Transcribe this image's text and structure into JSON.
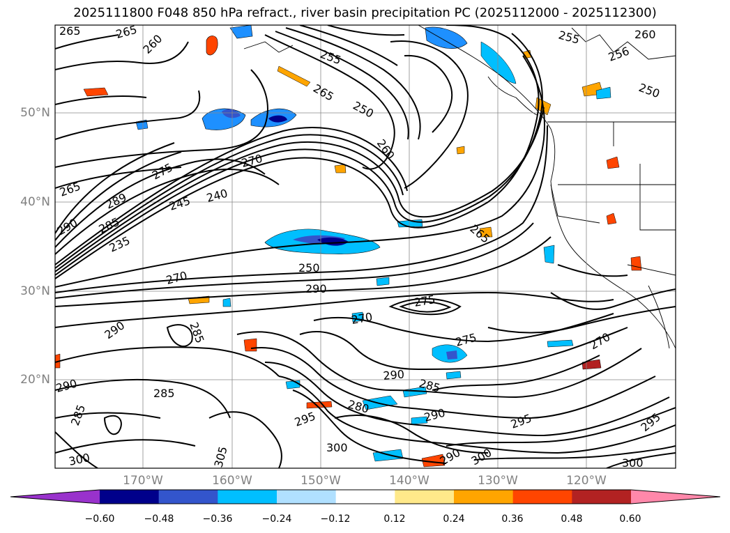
{
  "title": "2025111800 F048 850 hPa refract., river basin precipitation PC (2025112000 - 2025112300)",
  "lat_labels": [
    "50°N",
    "40°N",
    "30°N",
    "20°N"
  ],
  "lon_labels": [
    "170°W",
    "160°W",
    "150°W",
    "140°W",
    "130°W",
    "120°W"
  ],
  "contour_labels": [
    "265",
    "265",
    "260",
    "255",
    "265",
    "250",
    "260",
    "255",
    "256",
    "260",
    "250",
    "275",
    "270",
    "265",
    "289",
    "245",
    "240",
    "290",
    "285",
    "235",
    "270",
    "250",
    "290",
    "290",
    "285",
    "275",
    "270",
    "265",
    "290",
    "285",
    "285",
    "280",
    "295",
    "290",
    "290",
    "295",
    "300",
    "300",
    "305",
    "285",
    "300",
    "295",
    "290",
    "300",
    "275",
    "270"
  ],
  "colorbar": {
    "colors": [
      "#9932cc",
      "#00008b",
      "#3355cc",
      "#00bfff",
      "#b0e0ff",
      "#ffffff",
      "#ffe98a",
      "#ffa500",
      "#ff4500",
      "#b22222",
      "#ff88aa"
    ],
    "tick_labels": [
      "−0.60",
      "−0.48",
      "−0.36",
      "−0.24",
      "−0.12",
      "0.12",
      "0.24",
      "0.36",
      "0.48",
      "0.60"
    ]
  }
}
